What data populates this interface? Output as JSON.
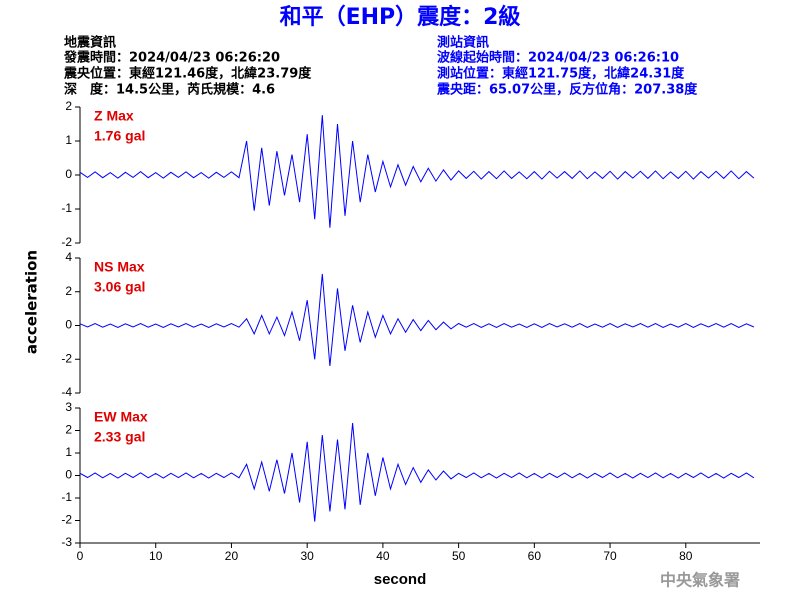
{
  "header": {
    "title": "和平（EHP）震度：2級",
    "left": [
      "地震資訊",
      "發震時間：2024/04/23 06:26:20",
      "震央位置：東經121.46度，北緯23.79度",
      "深　度：14.5公里，芮氏規模：4.6"
    ],
    "right": [
      "測站資訊",
      "波線起始時間：2024/04/23 06:26:10",
      "測站位置：東經121.75度，北緯24.31度",
      "震央距：65.07公里，反方位角：207.38度"
    ]
  },
  "ylabel": "acceleration",
  "footer": "中央氣象署",
  "chart_data": [
    {
      "type": "line",
      "annotations": [
        "Z Max",
        "1.76 gal"
      ],
      "color": "#0000ff",
      "xlim": [
        0,
        89.8
      ],
      "ylim": [
        -2,
        2
      ],
      "yticks": [
        -2,
        -1,
        0,
        1,
        2
      ],
      "x": [
        0,
        1,
        2,
        3,
        4,
        5,
        6,
        7,
        8,
        9,
        10,
        11,
        12,
        13,
        14,
        15,
        16,
        17,
        18,
        19,
        20,
        21,
        22,
        23,
        24,
        25,
        26,
        27,
        28,
        29,
        30,
        31,
        32,
        33,
        34,
        35,
        36,
        37,
        38,
        39,
        40,
        41,
        42,
        43,
        44,
        45,
        46,
        47,
        48,
        49,
        50,
        51,
        52,
        53,
        54,
        55,
        56,
        57,
        58,
        59,
        60,
        61,
        62,
        63,
        64,
        65,
        66,
        67,
        68,
        69,
        70,
        71,
        72,
        73,
        74,
        75,
        76,
        77,
        78,
        79,
        80,
        81,
        82,
        83,
        84,
        85,
        86,
        87,
        88,
        89
      ],
      "values": [
        0.08,
        -0.07,
        0.09,
        -0.08,
        0.07,
        -0.09,
        0.08,
        -0.07,
        0.1,
        -0.08,
        0.07,
        -0.09,
        0.08,
        -0.07,
        0.09,
        -0.08,
        0.07,
        -0.09,
        0.08,
        -0.07,
        0.09,
        -0.08,
        1.0,
        -1.05,
        0.8,
        -0.9,
        0.7,
        -0.6,
        0.6,
        -0.8,
        1.2,
        -1.3,
        1.76,
        -1.55,
        1.5,
        -1.2,
        1.0,
        -0.8,
        0.6,
        -0.5,
        0.4,
        -0.35,
        0.3,
        -0.3,
        0.25,
        -0.2,
        0.2,
        -0.18,
        0.15,
        -0.15,
        0.12,
        -0.1,
        0.11,
        -0.12,
        0.1,
        -0.11,
        0.12,
        -0.1,
        0.09,
        -0.11,
        0.1,
        -0.12,
        0.11,
        -0.09,
        0.1,
        -0.1,
        0.12,
        -0.11,
        0.09,
        -0.1,
        0.11,
        -0.12,
        0.1,
        -0.09,
        0.11,
        -0.1,
        0.12,
        -0.11,
        0.09,
        -0.1,
        0.11,
        -0.12,
        0.1,
        -0.09,
        0.11,
        -0.1,
        0.12,
        -0.11,
        0.1,
        -0.09
      ]
    },
    {
      "type": "line",
      "annotations": [
        "NS Max",
        "3.06 gal"
      ],
      "color": "#0000ff",
      "xlim": [
        0,
        89.8
      ],
      "ylim": [
        -4,
        4
      ],
      "yticks": [
        -4,
        -2,
        0,
        2,
        4
      ],
      "x": [
        0,
        1,
        2,
        3,
        4,
        5,
        6,
        7,
        8,
        9,
        10,
        11,
        12,
        13,
        14,
        15,
        16,
        17,
        18,
        19,
        20,
        21,
        22,
        23,
        24,
        25,
        26,
        27,
        28,
        29,
        30,
        31,
        32,
        33,
        34,
        35,
        36,
        37,
        38,
        39,
        40,
        41,
        42,
        43,
        44,
        45,
        46,
        47,
        48,
        49,
        50,
        51,
        52,
        53,
        54,
        55,
        56,
        57,
        58,
        59,
        60,
        61,
        62,
        63,
        64,
        65,
        66,
        67,
        68,
        69,
        70,
        71,
        72,
        73,
        74,
        75,
        76,
        77,
        78,
        79,
        80,
        81,
        82,
        83,
        84,
        85,
        86,
        87,
        88,
        89
      ],
      "values": [
        0.1,
        -0.09,
        0.11,
        -0.1,
        0.09,
        -0.11,
        0.1,
        -0.09,
        0.12,
        -0.1,
        0.09,
        -0.11,
        0.1,
        -0.09,
        0.11,
        -0.1,
        0.09,
        -0.11,
        0.1,
        -0.09,
        0.11,
        -0.1,
        0.4,
        -0.5,
        0.6,
        -0.5,
        0.5,
        -0.6,
        0.8,
        -0.9,
        1.5,
        -2.0,
        3.06,
        -2.4,
        2.2,
        -1.5,
        1.2,
        -1.0,
        0.8,
        -0.7,
        0.6,
        -0.5,
        0.4,
        -0.4,
        0.35,
        -0.3,
        0.3,
        -0.25,
        0.2,
        -0.2,
        0.12,
        -0.1,
        0.11,
        -0.12,
        0.1,
        -0.11,
        0.12,
        -0.1,
        0.09,
        -0.11,
        0.1,
        -0.12,
        0.11,
        -0.09,
        0.1,
        -0.1,
        0.12,
        -0.11,
        0.09,
        -0.1,
        0.11,
        -0.12,
        0.1,
        -0.09,
        0.11,
        -0.1,
        0.12,
        -0.11,
        0.09,
        -0.1,
        0.11,
        -0.12,
        0.1,
        -0.09,
        0.11,
        -0.1,
        0.12,
        -0.11,
        0.1,
        -0.09
      ]
    },
    {
      "type": "line",
      "annotations": [
        "EW Max",
        "2.33 gal"
      ],
      "color": "#0000ff",
      "xlim": [
        0,
        89.8
      ],
      "ylim": [
        -3,
        3
      ],
      "yticks": [
        -3,
        -2,
        -1,
        0,
        1,
        2,
        3
      ],
      "xticks": [
        0,
        10,
        20,
        30,
        40,
        50,
        60,
        70,
        80
      ],
      "xlabel": "second",
      "x": [
        0,
        1,
        2,
        3,
        4,
        5,
        6,
        7,
        8,
        9,
        10,
        11,
        12,
        13,
        14,
        15,
        16,
        17,
        18,
        19,
        20,
        21,
        22,
        23,
        24,
        25,
        26,
        27,
        28,
        29,
        30,
        31,
        32,
        33,
        34,
        35,
        36,
        37,
        38,
        39,
        40,
        41,
        42,
        43,
        44,
        45,
        46,
        47,
        48,
        49,
        50,
        51,
        52,
        53,
        54,
        55,
        56,
        57,
        58,
        59,
        60,
        61,
        62,
        63,
        64,
        65,
        66,
        67,
        68,
        69,
        70,
        71,
        72,
        73,
        74,
        75,
        76,
        77,
        78,
        79,
        80,
        81,
        82,
        83,
        84,
        85,
        86,
        87,
        88,
        89
      ],
      "values": [
        0.1,
        -0.09,
        0.11,
        -0.1,
        0.09,
        -0.11,
        0.1,
        -0.09,
        0.12,
        -0.1,
        0.09,
        -0.11,
        0.1,
        -0.09,
        0.11,
        -0.1,
        0.09,
        -0.11,
        0.1,
        -0.09,
        0.11,
        -0.1,
        0.5,
        -0.6,
        0.6,
        -0.7,
        0.7,
        -0.8,
        1.0,
        -1.2,
        1.5,
        -2.05,
        1.8,
        -1.6,
        1.6,
        -1.5,
        2.33,
        -1.3,
        1.0,
        -0.9,
        0.8,
        -0.6,
        0.5,
        -0.4,
        0.35,
        -0.3,
        0.25,
        -0.2,
        0.2,
        -0.15,
        0.1,
        -0.09,
        0.11,
        -0.1,
        0.09,
        -0.11,
        0.1,
        -0.09,
        0.11,
        -0.1,
        0.09,
        -0.11,
        0.1,
        -0.09,
        0.11,
        -0.1,
        0.09,
        -0.11,
        0.1,
        -0.09,
        0.11,
        -0.1,
        0.09,
        -0.11,
        0.1,
        -0.09,
        0.11,
        -0.1,
        0.09,
        -0.11,
        0.1,
        -0.09,
        0.11,
        -0.1,
        0.09,
        -0.11,
        0.1,
        -0.09,
        0.11,
        -0.1
      ]
    }
  ]
}
